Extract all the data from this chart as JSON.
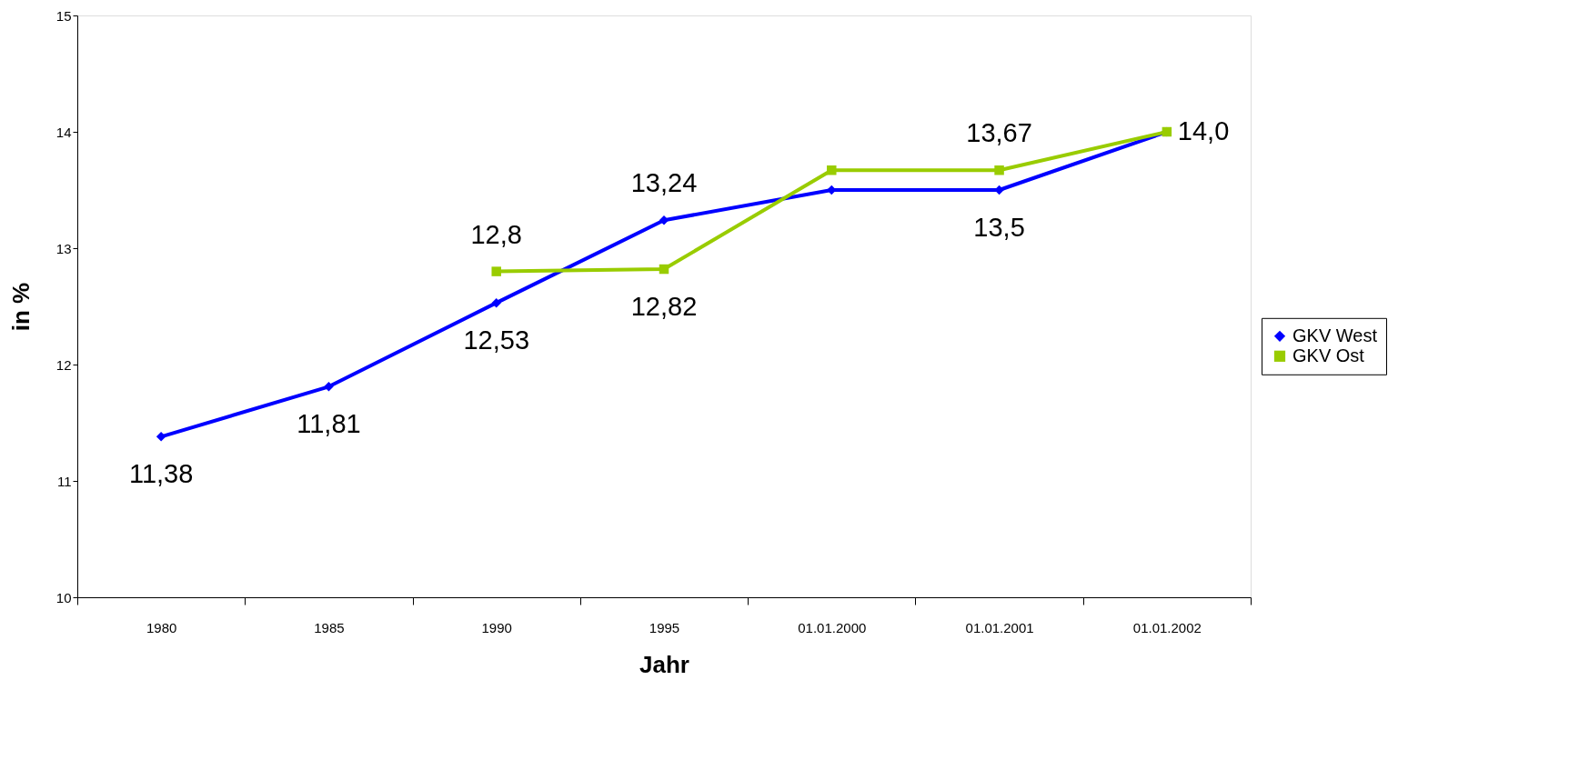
{
  "chart_data": {
    "type": "line",
    "xlabel": "Jahr",
    "ylabel": "in %",
    "categories": [
      "1980",
      "1985",
      "1990",
      "1995",
      "01.01.2000",
      "01.01.2001",
      "01.01.2002"
    ],
    "series": [
      {
        "name": "GKV West",
        "color": "#0000ff",
        "marker": "diamond",
        "values": [
          11.38,
          11.81,
          12.53,
          13.24,
          13.5,
          13.5,
          14.0
        ],
        "value_labels": [
          "11,38",
          "11,81",
          "12,53",
          "13,24",
          null,
          "13,5",
          "14,0"
        ]
      },
      {
        "name": "GKV Ost",
        "color": "#99cc00",
        "marker": "square",
        "values": [
          null,
          null,
          12.8,
          12.82,
          13.67,
          13.67,
          14.0
        ],
        "value_labels": [
          null,
          null,
          "12,8",
          "12,82",
          null,
          "13,67",
          null
        ]
      }
    ],
    "ylim": [
      10,
      15
    ],
    "yticks": [
      10,
      11,
      12,
      13,
      14,
      15
    ],
    "grid": false,
    "legend": "right",
    "line_style": "solid"
  }
}
